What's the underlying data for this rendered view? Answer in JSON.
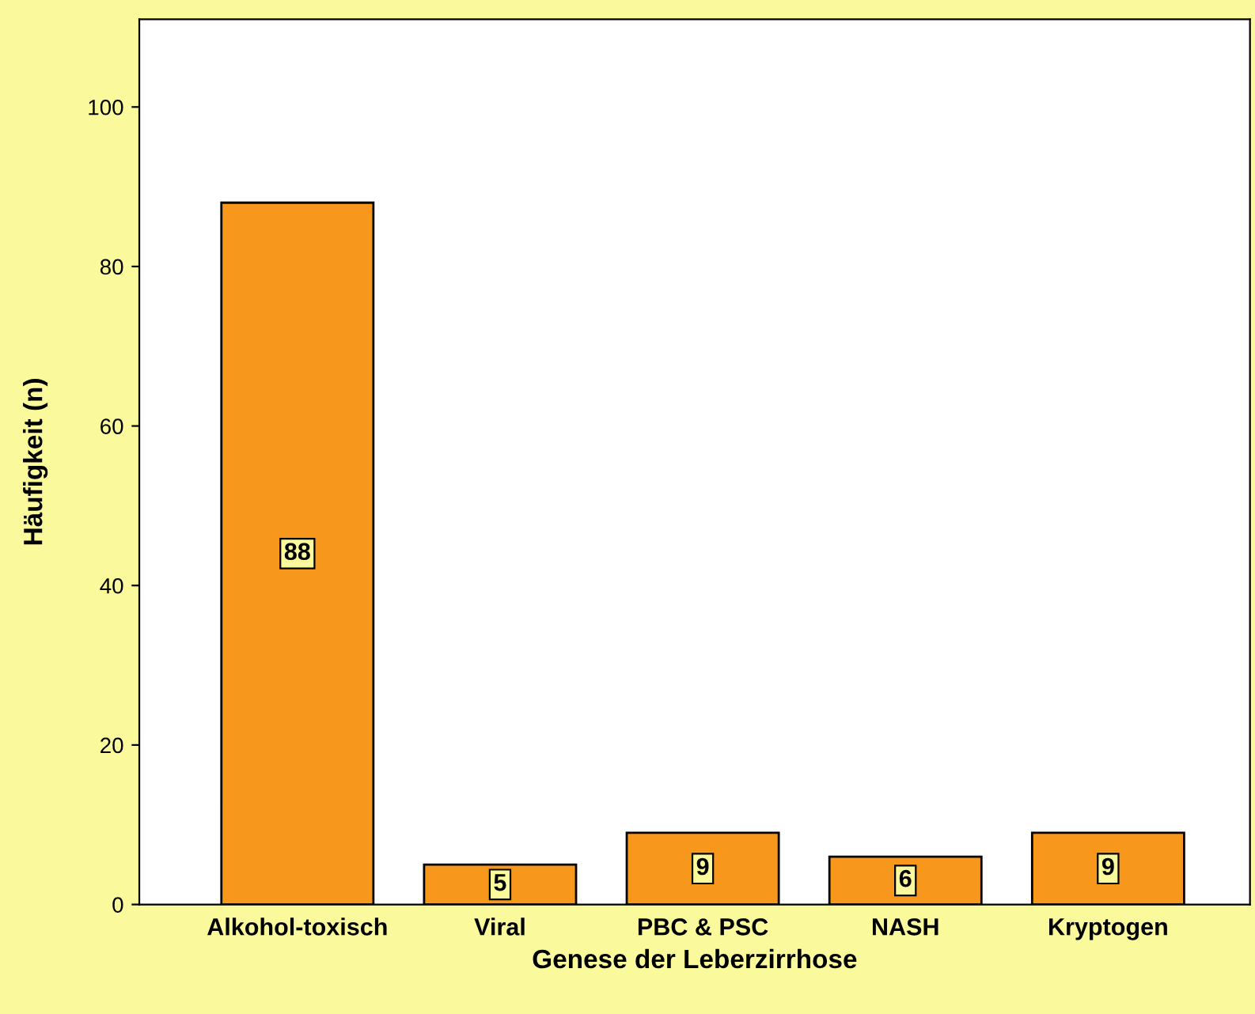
{
  "chart_data": {
    "type": "bar",
    "xlabel": "Genese der Leberzirrhose",
    "ylabel": "Häufigkeit (n)",
    "categories": [
      "Alkohol-toxisch",
      "Viral",
      "PBC & PSC",
      "NASH",
      "Kryptogen"
    ],
    "values": [
      88,
      5,
      9,
      6,
      9
    ],
    "color": "#f7981d",
    "ylim": [
      0,
      111
    ],
    "yticks": [
      0,
      20,
      40,
      60,
      80,
      100
    ],
    "grid": false,
    "data_labels": true
  }
}
